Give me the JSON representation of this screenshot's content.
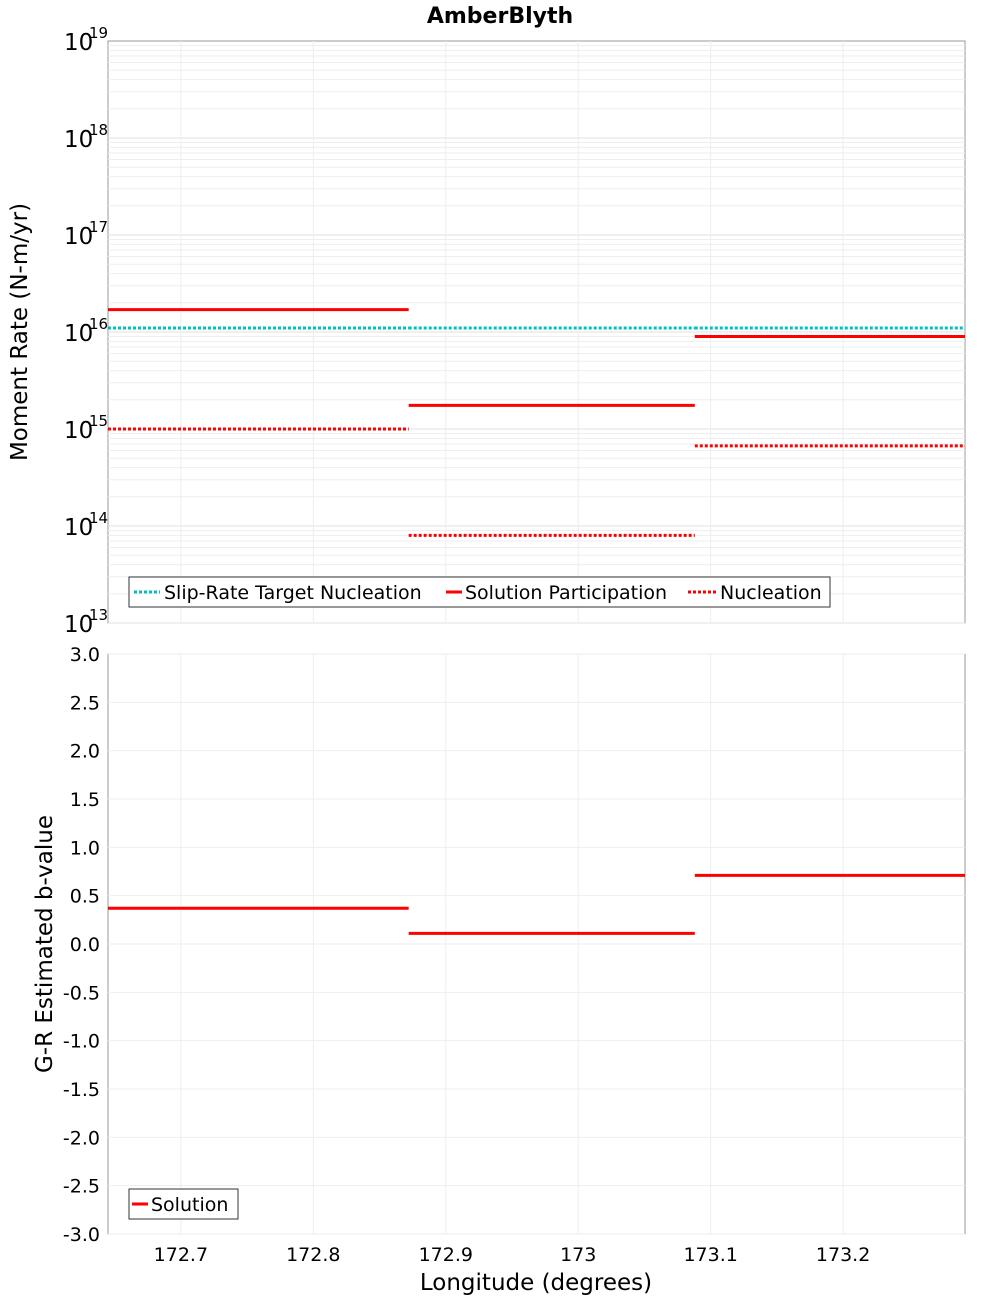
{
  "chart_data": [
    {
      "type": "line",
      "title": "AmberBlyth",
      "ylabel": "Moment Rate (N-m/yr)",
      "yscale": "log",
      "ylim": [
        10000000000000.0,
        1e+19
      ],
      "xlim": [
        172.645,
        173.292
      ],
      "y_ticks": [
        {
          "base": "10",
          "exp": "19",
          "value": 1e+19
        },
        {
          "base": "10",
          "exp": "18",
          "value": 1e+18
        },
        {
          "base": "10",
          "exp": "17",
          "value": 1e+17
        },
        {
          "base": "10",
          "exp": "16",
          "value": 1e+16
        },
        {
          "base": "10",
          "exp": "15",
          "value": 1000000000000000.0
        },
        {
          "base": "10",
          "exp": "14",
          "value": 100000000000000.0
        },
        {
          "base": "10",
          "exp": "13",
          "value": 10000000000000.0
        }
      ],
      "series": [
        {
          "name": "Slip-Rate Target Nucleation",
          "color": "#00c0c0",
          "dashed": true,
          "segments": [
            {
              "x": [
                172.645,
                172.872
              ],
              "y": 1.1e+16
            },
            {
              "x": [
                172.872,
                173.088
              ],
              "y": 1.1e+16
            },
            {
              "x": [
                173.088,
                173.292
              ],
              "y": 1.1e+16
            }
          ]
        },
        {
          "name": "Solution Participation",
          "color": "#ff0000",
          "dashed": false,
          "segments": [
            {
              "x": [
                172.645,
                172.872
              ],
              "y": 1.7e+16
            },
            {
              "x": [
                172.872,
                173.088
              ],
              "y": 1750000000000000.0
            },
            {
              "x": [
                173.088,
                173.292
              ],
              "y": 9000000000000000.0
            }
          ]
        },
        {
          "name": "Nucleation",
          "color": "#ff0000",
          "dashed": true,
          "segments": [
            {
              "x": [
                172.645,
                172.872
              ],
              "y": 1000000000000000.0
            },
            {
              "x": [
                172.872,
                173.088
              ],
              "y": 80000000000000.0
            },
            {
              "x": [
                173.088,
                173.292
              ],
              "y": 670000000000000.0
            }
          ]
        }
      ],
      "legend": {
        "position": "bottom-left",
        "entries": [
          "Slip-Rate Target Nucleation",
          "Solution Participation",
          "Nucleation"
        ]
      }
    },
    {
      "type": "line",
      "ylabel": "G-R Estimated b-value",
      "xlabel": "Longitude (degrees)",
      "ylim": [
        -3.0,
        3.0
      ],
      "xlim": [
        172.645,
        173.292
      ],
      "y_ticks": [
        "3.0",
        "2.5",
        "2.0",
        "1.5",
        "1.0",
        "0.5",
        "0.0",
        "-0.5",
        "-1.0",
        "-1.5",
        "-2.0",
        "-2.5",
        "-3.0"
      ],
      "x_ticks": [
        "172.7",
        "172.8",
        "172.9",
        "173",
        "173.1",
        "173.2"
      ],
      "series": [
        {
          "name": "Solution",
          "color": "#ff0000",
          "dashed": false,
          "segments": [
            {
              "x": [
                172.645,
                172.872
              ],
              "y": 0.37
            },
            {
              "x": [
                172.872,
                173.088
              ],
              "y": 0.11
            },
            {
              "x": [
                173.088,
                173.292
              ],
              "y": 0.71
            }
          ]
        }
      ],
      "legend": {
        "position": "bottom-left",
        "entries": [
          "Solution"
        ]
      }
    }
  ]
}
